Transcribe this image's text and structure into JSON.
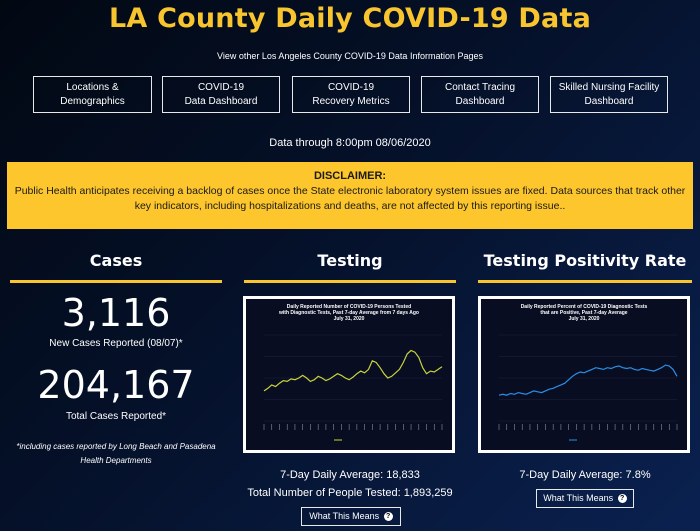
{
  "header": {
    "title": "LA County Daily COVID-19 Data",
    "subtitle": "View other Los Angeles County COVID-19 Data Information Pages"
  },
  "nav": [
    {
      "line1": "Locations &",
      "line2": "Demographics"
    },
    {
      "line1": "COVID-19",
      "line2": "Data Dashboard"
    },
    {
      "line1": "COVID-19",
      "line2": "Recovery Metrics"
    },
    {
      "line1": "Contact Tracing",
      "line2": "Dashboard"
    },
    {
      "line1": "Skilled Nursing Facility",
      "line2": "Dashboard"
    }
  ],
  "data_date": "Data through 8:00pm 08/06/2020",
  "disclaimer": {
    "title": "DISCLAIMER:",
    "text": "Public Health anticipates receiving a backlog of cases once the State electronic laboratory system issues are fixed. Data sources that track other key indicators, including hospitalizations and deaths, are not affected by this reporting issue.."
  },
  "cases": {
    "heading": "Cases",
    "new_cases": "3,116",
    "new_cases_label": "New Cases Reported (08/07)*",
    "total_cases": "204,167",
    "total_cases_label": "Total Cases Reported*",
    "footnote": "*including cases reported by Long Beach and Pasadena Health Departments"
  },
  "testing": {
    "heading": "Testing",
    "chart_title_1": "Daily Reported Number of COVID-19 Persons Tested",
    "chart_title_2": "with Diagnostic Tests, Past 7-day Average from 7 days Ago",
    "chart_title_3": "July 31, 2020",
    "avg": "7-Day Daily Average: 18,833",
    "total": "Total Number of People Tested: 1,893,259",
    "means_label": "What This Means",
    "line_color": "#c8d43a"
  },
  "positivity": {
    "heading": "Testing Positivity Rate",
    "chart_title_1": "Daily Reported Percent of COVID-19 Diagnostic Tests",
    "chart_title_2": "that are Positive, Past 7-day Average",
    "chart_title_3": "July 31, 2020",
    "avg": "7-Day Daily Average: 7.8%",
    "means_label": "What This Means",
    "line_color": "#2a8fe8"
  },
  "accent_color": "#f9c52e",
  "chart_data": [
    {
      "type": "line",
      "title": "Daily Reported Number of COVID-19 Persons Tested with Diagnostic Tests, Past 7-day Average from 7 days Ago July 31, 2020",
      "series": [
        {
          "values": [
            0.35,
            0.38,
            0.42,
            0.4,
            0.44,
            0.47,
            0.46,
            0.49,
            0.48,
            0.5,
            0.53,
            0.5,
            0.46,
            0.48,
            0.52,
            0.5,
            0.47,
            0.49,
            0.52,
            0.55,
            0.53,
            0.5,
            0.48,
            0.51,
            0.55,
            0.58,
            0.56,
            0.6,
            0.7,
            0.68,
            0.62,
            0.55,
            0.5,
            0.52,
            0.56,
            0.6,
            0.68,
            0.78,
            0.82,
            0.8,
            0.74,
            0.62,
            0.55,
            0.58,
            0.57,
            0.6,
            0.63
          ]
        }
      ]
    },
    {
      "type": "line",
      "title": "Daily Reported Percent of COVID-19 Diagnostic Tests that are Positive, Past 7-day Average July 31, 2020",
      "series": [
        {
          "values": [
            0.3,
            0.31,
            0.3,
            0.32,
            0.31,
            0.33,
            0.32,
            0.31,
            0.33,
            0.35,
            0.34,
            0.33,
            0.35,
            0.37,
            0.38,
            0.4,
            0.42,
            0.44,
            0.48,
            0.52,
            0.55,
            0.57,
            0.56,
            0.58,
            0.6,
            0.62,
            0.61,
            0.6,
            0.62,
            0.61,
            0.63,
            0.64,
            0.62,
            0.61,
            0.62,
            0.6,
            0.59,
            0.61,
            0.6,
            0.59,
            0.58,
            0.6,
            0.62,
            0.65,
            0.64,
            0.6,
            0.52
          ]
        }
      ]
    }
  ]
}
